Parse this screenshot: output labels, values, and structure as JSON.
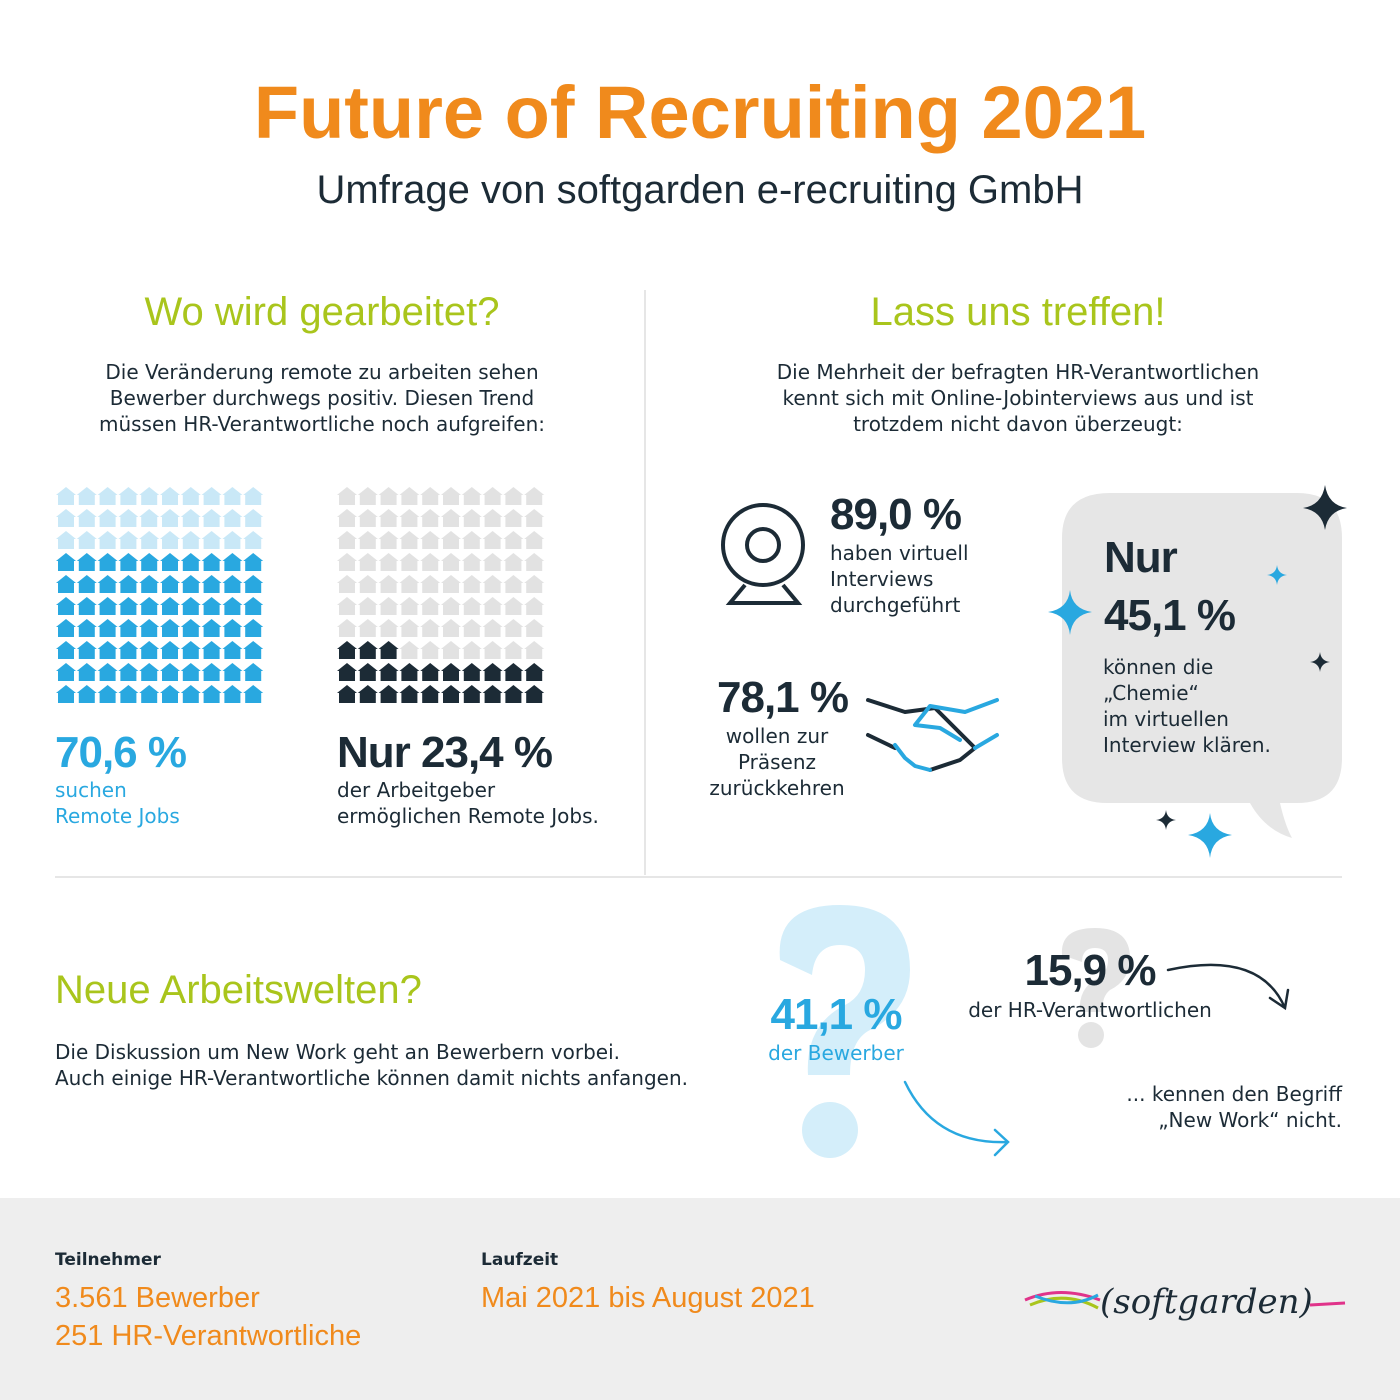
{
  "header": {
    "title": "Future of Recruiting 2021",
    "subtitle": "Umfrage von softgarden e-recruiting GmbH"
  },
  "left": {
    "heading": "Wo wird gearbeitet?",
    "text": [
      "Die Veränderung remote zu arbeiten sehen",
      "Bewerber durchwegs positiv. Diesen Trend",
      "müssen HR-Verantwortliche noch aufgreifen:"
    ],
    "remote": {
      "value": 70.6,
      "label": "70,6 %",
      "caption": [
        "suchen",
        "Remote Jobs"
      ]
    },
    "employer": {
      "value": 23.4,
      "label": "Nur 23,4 %",
      "caption": [
        "der Arbeitgeber",
        "ermöglichen Remote Jobs."
      ]
    }
  },
  "right": {
    "heading": "Lass uns treffen!",
    "text": [
      "Die Mehrheit der befragten HR-Verantwortlichen",
      "kennt sich mit Online-Jobinterviews aus und ist",
      "trotzdem nicht davon überzeugt:"
    ],
    "virtual": {
      "label": "89,0 %",
      "caption": [
        "haben virtuell",
        "Interviews",
        "durchgeführt"
      ]
    },
    "return": {
      "label": "78,1 %",
      "caption": [
        "wollen zur",
        "Präsenz",
        "zurückkehren"
      ]
    },
    "bubble": {
      "prefix": "Nur",
      "label": "45,1 %",
      "caption": [
        "können die",
        "„Chemie“",
        "im virtuellen",
        "Interview klären."
      ]
    }
  },
  "bottom": {
    "heading": "Neue Arbeitswelten?",
    "text": [
      "Die Diskussion um New Work geht an Bewerbern vorbei.",
      "Auch einige HR-Verantwortliche können damit nichts anfangen."
    ],
    "applicants": {
      "label": "41,1 %",
      "caption": "der Bewerber"
    },
    "hr": {
      "label": "15,9 %",
      "caption": "der HR-Verantwortlichen"
    },
    "conclusion": [
      "... kennen den Begriff",
      "„New Work“ nicht."
    ]
  },
  "footer": {
    "participants": {
      "title": "Teilnehmer",
      "lines": [
        "3.561 Bewerber",
        "251 HR-Verantwortliche"
      ]
    },
    "period": {
      "title": "Laufzeit",
      "text": "Mai 2021 bis August 2021"
    },
    "logo": "(softgarden)"
  }
}
